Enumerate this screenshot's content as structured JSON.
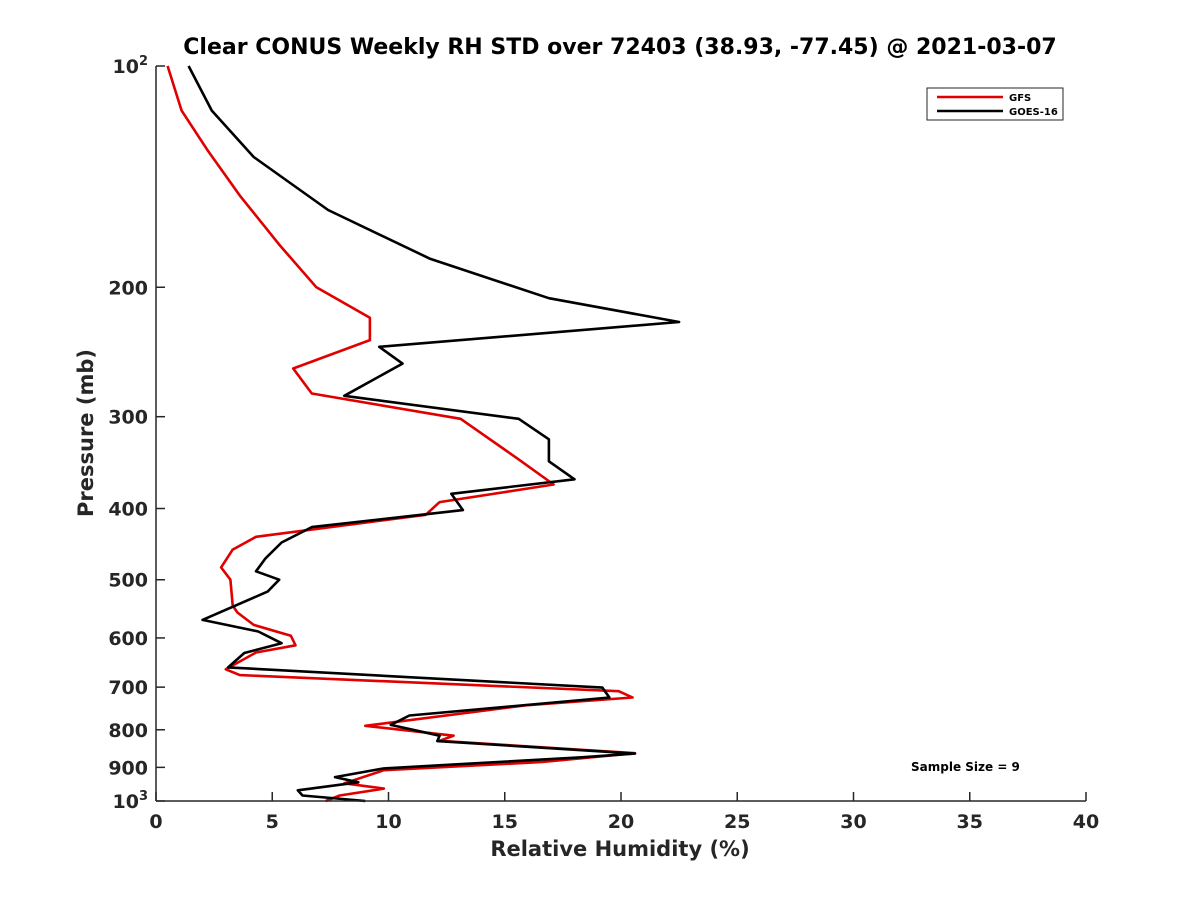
{
  "chart_data": {
    "type": "line",
    "title": "Clear CONUS Weekly RH STD over 72403 (38.93, -77.45) @ 2021-03-07",
    "xlabel": "Relative Humidity (%)",
    "ylabel": "Pressure (mb)",
    "xlim": [
      0,
      40
    ],
    "ylim": [
      100,
      1000
    ],
    "y_scale": "log",
    "y_reversed": true,
    "grid": false,
    "legend_position": "top-right",
    "x_ticks": [
      {
        "value": 0,
        "label": "0"
      },
      {
        "value": 5,
        "label": "5"
      },
      {
        "value": 10,
        "label": "10"
      },
      {
        "value": 15,
        "label": "15"
      },
      {
        "value": 20,
        "label": "20"
      },
      {
        "value": 25,
        "label": "25"
      },
      {
        "value": 30,
        "label": "30"
      },
      {
        "value": 35,
        "label": "35"
      },
      {
        "value": 40,
        "label": "40"
      }
    ],
    "y_ticks": [
      {
        "value": 100,
        "base": "10",
        "exp": "2"
      },
      {
        "value": 200,
        "label": "200"
      },
      {
        "value": 300,
        "label": "300"
      },
      {
        "value": 400,
        "label": "400"
      },
      {
        "value": 500,
        "label": "500"
      },
      {
        "value": 600,
        "label": "600"
      },
      {
        "value": 700,
        "label": "700"
      },
      {
        "value": 800,
        "label": "800"
      },
      {
        "value": 900,
        "label": "900"
      },
      {
        "value": 1000,
        "base": "10",
        "exp": "3"
      }
    ],
    "annotation": "Sample Size = 9",
    "series": [
      {
        "name": "GFS",
        "color": "#e00000",
        "points": [
          [
            0.5,
            100
          ],
          [
            1.1,
            115
          ],
          [
            2.2,
            130
          ],
          [
            3.6,
            150
          ],
          [
            5.3,
            175
          ],
          [
            6.9,
            200
          ],
          [
            9.2,
            220
          ],
          [
            9.2,
            236
          ],
          [
            5.9,
            258
          ],
          [
            6.7,
            279
          ],
          [
            13.1,
            302
          ],
          [
            15.6,
            343
          ],
          [
            17.1,
            371
          ],
          [
            12.2,
            392
          ],
          [
            11.6,
            408
          ],
          [
            4.3,
            437
          ],
          [
            3.3,
            455
          ],
          [
            2.8,
            481
          ],
          [
            3.2,
            500
          ],
          [
            3.3,
            542
          ],
          [
            3.5,
            554
          ],
          [
            4.2,
            576
          ],
          [
            5.8,
            596
          ],
          [
            6.0,
            614
          ],
          [
            4.3,
            628
          ],
          [
            3.0,
            662
          ],
          [
            3.6,
            674
          ],
          [
            19.9,
            709
          ],
          [
            20.5,
            723
          ],
          [
            15.9,
            741
          ],
          [
            9.0,
            790
          ],
          [
            12.8,
            815
          ],
          [
            12.2,
            828
          ],
          [
            20.6,
            861
          ],
          [
            16.6,
            885
          ],
          [
            9.8,
            908
          ],
          [
            8.1,
            946
          ],
          [
            9.8,
            962
          ],
          [
            7.9,
            983
          ],
          [
            7.3,
            1000
          ]
        ]
      },
      {
        "name": "GOES-16",
        "color": "#000000",
        "points": [
          [
            1.4,
            100
          ],
          [
            2.4,
            115
          ],
          [
            4.2,
            133
          ],
          [
            7.4,
            157
          ],
          [
            11.8,
            183
          ],
          [
            16.9,
            207
          ],
          [
            22.5,
            223
          ],
          [
            9.6,
            241
          ],
          [
            10.6,
            254
          ],
          [
            8.1,
            281
          ],
          [
            15.6,
            302
          ],
          [
            16.9,
            322
          ],
          [
            16.9,
            345
          ],
          [
            18.0,
            365
          ],
          [
            12.7,
            382
          ],
          [
            13.2,
            402
          ],
          [
            6.7,
            424
          ],
          [
            5.4,
            445
          ],
          [
            4.7,
            468
          ],
          [
            4.3,
            487
          ],
          [
            5.3,
            500
          ],
          [
            4.8,
            519
          ],
          [
            2.0,
            567
          ],
          [
            4.4,
            588
          ],
          [
            5.4,
            610
          ],
          [
            3.8,
            629
          ],
          [
            3.1,
            658
          ],
          [
            19.2,
            701
          ],
          [
            19.5,
            723
          ],
          [
            10.9,
            765
          ],
          [
            10.1,
            788
          ],
          [
            12.2,
            815
          ],
          [
            12.1,
            829
          ],
          [
            20.6,
            862
          ],
          [
            18.3,
            872
          ],
          [
            9.8,
            903
          ],
          [
            7.7,
            928
          ],
          [
            8.7,
            943
          ],
          [
            6.1,
            967
          ],
          [
            6.3,
            983
          ],
          [
            9.0,
            1000
          ]
        ]
      }
    ]
  }
}
